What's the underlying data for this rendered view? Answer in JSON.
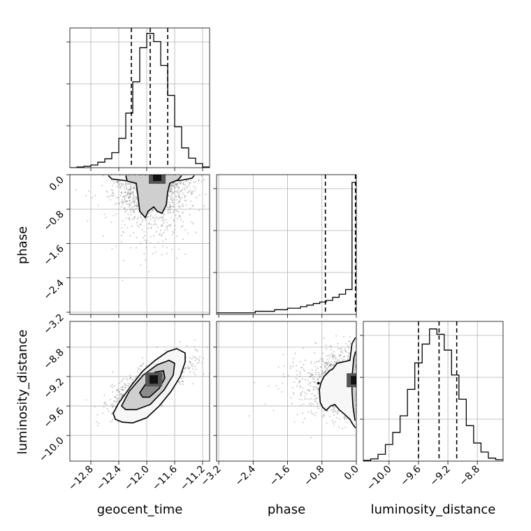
{
  "chart_data": {
    "type": "corner",
    "parameters": [
      "geocent_time",
      "phase",
      "luminosity_distance"
    ],
    "grid": true,
    "axis_labels": {
      "x": [
        "geocent_time",
        "phase",
        "luminosity_distance"
      ],
      "y": [
        "phase",
        "luminosity_distance"
      ]
    },
    "ranges": {
      "geocent_time": [
        -13.1,
        -11.1
      ],
      "phase": [
        -3.25,
        0.0
      ],
      "luminosity_distance": [
        -10.35,
        -8.45
      ]
    },
    "ticks": {
      "geocent_time": {
        "values": [
          -12.8,
          -12.4,
          -12.0,
          -11.6,
          -11.2
        ],
        "labels": [
          "−12.8",
          "−12.4",
          "−12.0",
          "−11.6",
          "−11.2"
        ]
      },
      "phase": {
        "values": [
          -3.2,
          -2.4,
          -1.6,
          -0.8,
          0.0
        ],
        "labels": [
          "−3.2",
          "−2.4",
          "−1.6",
          "−0.8",
          "0.0"
        ]
      },
      "luminosity_distance": {
        "values": [
          -10.0,
          -9.6,
          -9.2,
          -8.8
        ],
        "labels": [
          "−10.0",
          "−9.6",
          "−9.2",
          "−8.8"
        ]
      }
    },
    "histograms": {
      "geocent_time": {
        "edges": [
          -13.1,
          -13.0,
          -12.9,
          -12.8,
          -12.7,
          -12.6,
          -12.5,
          -12.4,
          -12.3,
          -12.2,
          -12.1,
          -12.0,
          -11.9,
          -11.8,
          -11.7,
          -11.6,
          -11.5,
          -11.4,
          -11.3,
          -11.2,
          -11.1
        ],
        "counts": [
          0,
          1,
          2,
          4,
          8,
          13,
          22,
          43,
          80,
          126,
          176,
          197,
          185,
          150,
          106,
          60,
          29,
          14,
          6,
          1
        ],
        "ymax": 205,
        "quantiles": [
          -12.22,
          -11.95,
          -11.7
        ]
      },
      "phase": {
        "edges": [
          -3.25,
          -3.1,
          -2.95,
          -2.8,
          -2.65,
          -2.5,
          -2.35,
          -2.2,
          -2.05,
          -1.9,
          -1.75,
          -1.6,
          -1.45,
          -1.3,
          -1.15,
          -1.0,
          -0.85,
          -0.7,
          -0.55,
          -0.4,
          -0.25,
          -0.1,
          0.0
        ],
        "counts": [
          1,
          1,
          1,
          1,
          1,
          1,
          2,
          2,
          2,
          3,
          3,
          4,
          4,
          5,
          6,
          7,
          8,
          9,
          11,
          13,
          16,
          85
        ],
        "ymax": 90,
        "quantiles": [
          -0.72,
          -0.02
        ]
      },
      "luminosity_distance": {
        "edges": [
          -10.35,
          -10.25,
          -10.15,
          -10.05,
          -9.95,
          -9.85,
          -9.75,
          -9.65,
          -9.55,
          -9.45,
          -9.35,
          -9.25,
          -9.15,
          -9.05,
          -8.95,
          -8.85,
          -8.75,
          -8.65,
          -8.55,
          -8.45
        ],
        "counts": [
          1,
          3,
          9,
          22,
          38,
          60,
          95,
          130,
          155,
          175,
          168,
          147,
          114,
          82,
          47,
          24,
          12,
          4,
          2
        ],
        "ymax": 185,
        "quantiles": [
          -9.6,
          -9.32,
          -9.08
        ]
      }
    },
    "contours": {
      "phase_vs_geocent_time": {
        "density_peak": [
          -11.85,
          -0.05
        ],
        "levels": [
          [
            [
              -12.55,
              -0.02
            ],
            [
              -12.5,
              -0.1
            ],
            [
              -12.3,
              -0.14
            ],
            [
              -12.1,
              -0.16
            ],
            [
              -11.9,
              -0.17
            ],
            [
              -11.7,
              -0.15
            ],
            [
              -11.5,
              -0.13
            ],
            [
              -11.35,
              -0.08
            ],
            [
              -11.32,
              -0.02
            ]
          ],
          [
            [
              -12.3,
              -0.02
            ],
            [
              -12.28,
              -0.15
            ],
            [
              -12.15,
              -0.2
            ],
            [
              -12.13,
              -0.45
            ],
            [
              -12.1,
              -0.85
            ],
            [
              -12.02,
              -1.0
            ],
            [
              -11.98,
              -0.85
            ],
            [
              -11.9,
              -0.75
            ],
            [
              -11.85,
              -0.85
            ],
            [
              -11.78,
              -0.9
            ],
            [
              -11.72,
              -0.7
            ],
            [
              -11.7,
              -0.4
            ],
            [
              -11.67,
              -0.2
            ],
            [
              -11.55,
              -0.12
            ],
            [
              -11.5,
              -0.02
            ]
          ]
        ]
      },
      "luminosity_distance_vs_geocent_time": {
        "density_peak": [
          -11.9,
          -9.24
        ],
        "levels": [
          [
            [
              -12.45,
              -9.78
            ],
            [
              -12.48,
              -9.7
            ],
            [
              -12.4,
              -9.56
            ],
            [
              -12.22,
              -9.32
            ],
            [
              -12.05,
              -9.12
            ],
            [
              -11.88,
              -8.98
            ],
            [
              -11.7,
              -8.86
            ],
            [
              -11.57,
              -8.82
            ],
            [
              -11.45,
              -8.88
            ],
            [
              -11.45,
              -9.0
            ],
            [
              -11.52,
              -9.2
            ],
            [
              -11.65,
              -9.4
            ],
            [
              -11.82,
              -9.6
            ],
            [
              -12.0,
              -9.76
            ],
            [
              -12.2,
              -9.83
            ],
            [
              -12.35,
              -9.82
            ],
            [
              -12.45,
              -9.78
            ]
          ],
          [
            [
              -12.36,
              -9.6
            ],
            [
              -12.25,
              -9.4
            ],
            [
              -12.05,
              -9.18
            ],
            [
              -11.85,
              -9.04
            ],
            [
              -11.68,
              -8.98
            ],
            [
              -11.6,
              -9.02
            ],
            [
              -11.62,
              -9.18
            ],
            [
              -11.75,
              -9.38
            ],
            [
              -11.95,
              -9.58
            ],
            [
              -12.15,
              -9.65
            ],
            [
              -12.3,
              -9.65
            ],
            [
              -12.36,
              -9.6
            ]
          ],
          [
            [
              -12.1,
              -9.42
            ],
            [
              -12.0,
              -9.28
            ],
            [
              -11.88,
              -9.14
            ],
            [
              -11.76,
              -9.12
            ],
            [
              -11.74,
              -9.22
            ],
            [
              -11.82,
              -9.36
            ],
            [
              -11.96,
              -9.48
            ],
            [
              -12.06,
              -9.48
            ],
            [
              -12.1,
              -9.42
            ]
          ]
        ]
      },
      "luminosity_distance_vs_phase": {
        "density_peak": [
          -0.03,
          -9.25
        ],
        "levels": [
          [
            [
              -0.02,
              -8.67
            ],
            [
              -0.1,
              -8.75
            ],
            [
              -0.15,
              -8.98
            ],
            [
              -0.45,
              -9.02
            ],
            [
              -0.55,
              -9.1
            ],
            [
              -0.62,
              -9.12
            ],
            [
              -0.75,
              -9.2
            ],
            [
              -0.82,
              -9.28
            ],
            [
              -0.86,
              -9.38
            ],
            [
              -0.84,
              -9.55
            ],
            [
              -0.78,
              -9.62
            ],
            [
              -0.7,
              -9.66
            ],
            [
              -0.6,
              -9.6
            ],
            [
              -0.5,
              -9.58
            ],
            [
              -0.4,
              -9.65
            ],
            [
              -0.3,
              -9.7
            ],
            [
              -0.15,
              -9.78
            ],
            [
              -0.08,
              -9.85
            ],
            [
              -0.02,
              -9.9
            ]
          ],
          [
            [
              -0.02,
              -8.86
            ],
            [
              -0.06,
              -8.95
            ],
            [
              -0.1,
              -9.2
            ],
            [
              -0.1,
              -9.4
            ],
            [
              -0.08,
              -9.6
            ],
            [
              -0.03,
              -9.8
            ]
          ]
        ],
        "isolated_point": [
          -0.88,
          -9.29
        ]
      }
    }
  }
}
